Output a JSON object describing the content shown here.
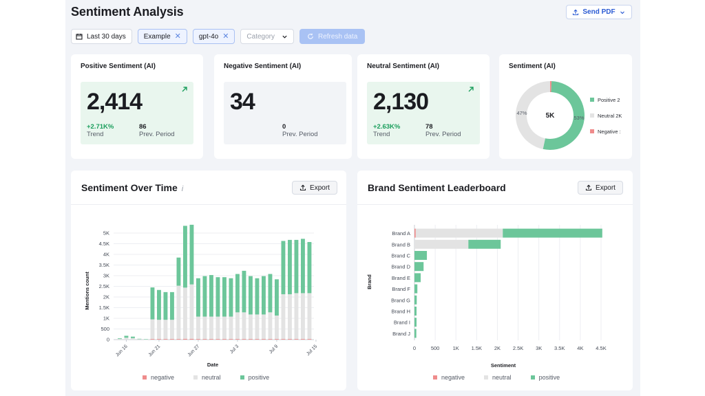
{
  "header": {
    "title": "Sentiment Analysis",
    "send_label": "Send PDF"
  },
  "filters": {
    "date_label": "Last 30 days",
    "tags": [
      "Example",
      "gpt-4o"
    ],
    "category_placeholder": "Category",
    "refresh_label": "Refresh data"
  },
  "kpis": [
    {
      "title": "Positive Sentiment (AI)",
      "value": "2,414",
      "trend_value": "+2.71K%",
      "trend_label": "Trend",
      "prev_value": "86",
      "prev_label": "Prev. Period",
      "style": "green"
    },
    {
      "title": "Negative Sentiment (AI)",
      "value": "34",
      "trend_value": "",
      "trend_label": "",
      "prev_value": "0",
      "prev_label": "Prev. Period",
      "style": "gray"
    },
    {
      "title": "Neutral Sentiment (AI)",
      "value": "2,130",
      "trend_value": "+2.63K%",
      "trend_label": "Trend",
      "prev_value": "78",
      "prev_label": "Prev. Period",
      "style": "green"
    }
  ],
  "donut": {
    "title": "Sentiment (AI)",
    "center_label": "5K",
    "pct_left": "47%",
    "pct_right": "53%",
    "legend": [
      "Positive 2",
      "Neutral 2K",
      "Negative :"
    ]
  },
  "colors": {
    "positive": "#6cc69a",
    "neutral": "#e3e3e3",
    "negative": "#ef8c8c",
    "accent": "#2a5ad3"
  },
  "over_time": {
    "title": "Sentiment Over Time",
    "export_label": "Export",
    "legend": [
      "negative",
      "neutral",
      "positive"
    ],
    "chart_data": {
      "type": "bar",
      "stacked": true,
      "xlabel": "Date",
      "ylabel": "Mentions count",
      "ylim": [
        0,
        5500
      ],
      "yticks": [
        "0",
        "500",
        "1K",
        "1.5K",
        "2K",
        "2.5K",
        "3K",
        "3.5K",
        "4K",
        "4.5K",
        "5K"
      ],
      "xticks": [
        {
          "label": "Jun 16",
          "index": 1
        },
        {
          "label": "Jun 21",
          "index": 6
        },
        {
          "label": "Jun 27",
          "index": 12
        },
        {
          "label": "Jul 3",
          "index": 18
        },
        {
          "label": "Jul 9",
          "index": 24
        },
        {
          "label": "Jul 15",
          "index": 30
        }
      ],
      "series": [
        {
          "name": "negative",
          "values": [
            0,
            0,
            0,
            0,
            0,
            30,
            30,
            30,
            30,
            30,
            40,
            40,
            30,
            30,
            30,
            30,
            30,
            30,
            30,
            30,
            30,
            30,
            30,
            30,
            30,
            30,
            30,
            30,
            30,
            30
          ]
        },
        {
          "name": "neutral",
          "values": [
            30,
            90,
            70,
            20,
            10,
            920,
            900,
            900,
            900,
            2500,
            2400,
            2550,
            1050,
            1050,
            1050,
            1050,
            1050,
            1050,
            1250,
            1250,
            1150,
            1150,
            1150,
            1250,
            1100,
            2100,
            2100,
            2150,
            2150,
            2150
          ]
        },
        {
          "name": "positive",
          "values": [
            30,
            90,
            70,
            20,
            10,
            1500,
            1400,
            1300,
            1300,
            1320,
            2900,
            2800,
            1800,
            1900,
            1950,
            1850,
            1850,
            1800,
            1800,
            1950,
            1800,
            1700,
            1800,
            1800,
            1700,
            2500,
            2550,
            2500,
            2550,
            2400
          ]
        }
      ]
    }
  },
  "leaderboard": {
    "title": "Brand Sentiment Leaderboard",
    "export_label": "Export",
    "legend": [
      "negative",
      "neutral",
      "positive"
    ],
    "chart_data": {
      "type": "bar",
      "orientation": "horizontal",
      "stacked": true,
      "xlabel": "Sentiment",
      "ylabel": "Brand",
      "xlim": [
        0,
        4500
      ],
      "xticks": [
        "0",
        "500",
        "1K",
        "1.5K",
        "2K",
        "2.5K",
        "3K",
        "3.5K",
        "4K",
        "4.5K"
      ],
      "categories": [
        "Brand A",
        "Brand B",
        "Brand C",
        "Brand D",
        "Brand E",
        "Brand F",
        "Brand G",
        "Brand H",
        "Brand I",
        "Brand J"
      ],
      "series": [
        {
          "name": "negative",
          "values": [
            30,
            0,
            0,
            0,
            0,
            0,
            0,
            0,
            0,
            0
          ]
        },
        {
          "name": "neutral",
          "values": [
            2100,
            1300,
            0,
            0,
            0,
            0,
            0,
            0,
            0,
            0
          ]
        },
        {
          "name": "positive",
          "values": [
            2400,
            780,
            300,
            220,
            150,
            70,
            55,
            50,
            50,
            45
          ]
        }
      ]
    }
  }
}
